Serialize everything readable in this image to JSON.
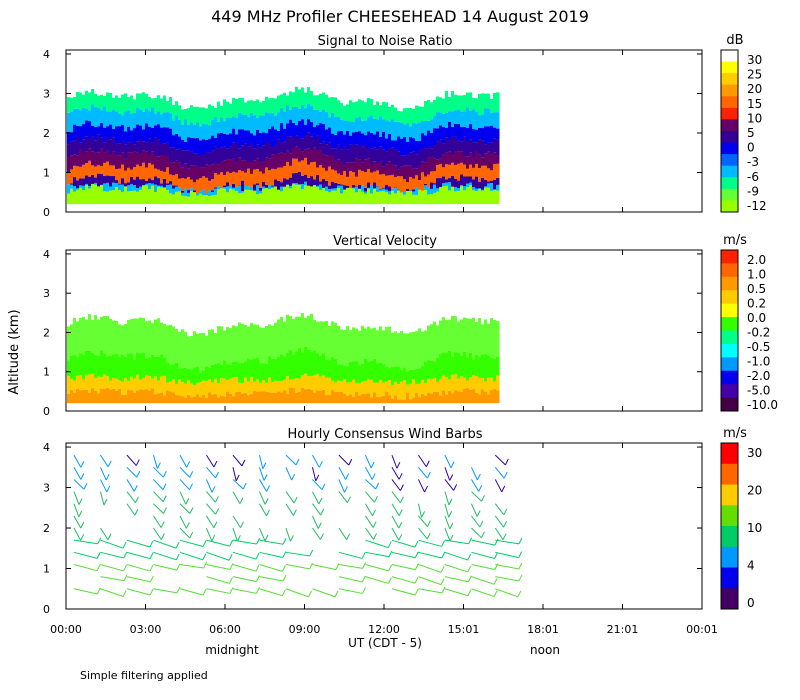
{
  "title": "449 MHz Profiler CHEESEHEAD 14 August 2019",
  "ylabel": "Altitude (km)",
  "xlabel": "UT  (CDT - 5)",
  "footnote": "Simple filtering applied",
  "time_marks": [
    {
      "label": "midnight",
      "at_hour": 5
    },
    {
      "label": "noon",
      "at_hour": 17
    }
  ],
  "chart_data": [
    {
      "type": "heatmap",
      "title": "Signal to Noise Ratio",
      "units": "dB",
      "xlim": [
        0,
        24
      ],
      "ylim": [
        0,
        4.1
      ],
      "x_ticks": [
        "00:00",
        "03:00",
        "06:00",
        "09:00",
        "12:00",
        "15:01",
        "18:01",
        "21:01",
        "00:01"
      ],
      "y_ticks": [
        "0",
        "1",
        "2",
        "3",
        "4"
      ],
      "data_end_hour": 16.3,
      "colorbar": {
        "labels": [
          "30",
          "25",
          "20",
          "15",
          "10",
          "5",
          "0",
          "-3",
          "-6",
          "-9",
          "-12"
        ],
        "colors": [
          "#ffffff",
          "#ffff00",
          "#ffcc00",
          "#ff9900",
          "#ff6600",
          "#ff2200",
          "#660066",
          "#330099",
          "#0000ee",
          "#0066ff",
          "#00bbff",
          "#00ff88",
          "#66ff33",
          "#99ff00"
        ]
      },
      "layers": [
        {
          "top": 0.55,
          "color": "#99ff00"
        },
        {
          "top": 0.62,
          "color": "#00bbff"
        },
        {
          "top": 0.72,
          "color": "#330099"
        },
        {
          "top": 1.05,
          "color": "#ff6600"
        },
        {
          "top": 1.35,
          "color": "#660066"
        },
        {
          "top": 1.7,
          "color": "#330099"
        },
        {
          "top": 2.05,
          "color": "#0000ee"
        },
        {
          "top": 2.45,
          "color": "#00bbff"
        },
        {
          "top": 2.85,
          "color": "#00ff88"
        },
        {
          "top": 4.0,
          "color": "#ffffff"
        }
      ]
    },
    {
      "type": "heatmap",
      "title": "Vertical Velocity",
      "units": "m/s",
      "xlim": [
        0,
        24
      ],
      "ylim": [
        0,
        4.1
      ],
      "x_ticks": [
        "00:00",
        "03:00",
        "06:00",
        "09:00",
        "12:00",
        "15:01",
        "18:01",
        "21:01",
        "00:01"
      ],
      "y_ticks": [
        "0",
        "1",
        "2",
        "3",
        "4"
      ],
      "data_end_hour": 16.3,
      "colorbar": {
        "labels": [
          "2.0",
          "1.0",
          "0.5",
          "0.2",
          "0.0",
          "-0.2",
          "-0.5",
          "-1.0",
          "-2.0",
          "-5.0",
          "-10.0"
        ],
        "colors": [
          "#ff2200",
          "#ff6600",
          "#ff9900",
          "#ffcc00",
          "#ffff00",
          "#33ff00",
          "#00ff88",
          "#00ffff",
          "#0099ff",
          "#0000ee",
          "#4400aa",
          "#440044"
        ]
      },
      "layers": [
        {
          "top": 0.45,
          "color": "#ff9900"
        },
        {
          "top": 0.8,
          "color": "#ffcc00"
        },
        {
          "top": 1.3,
          "color": "#33ff00"
        },
        {
          "top": 2.2,
          "color": "#66ff33"
        },
        {
          "top": 3.0,
          "color": "#ffffff"
        }
      ]
    },
    {
      "type": "wind_barbs",
      "title": "Hourly Consensus Wind Barbs",
      "units": "m/s",
      "xlim": [
        0,
        24
      ],
      "ylim": [
        0,
        4.1
      ],
      "x_ticks": [
        "00:00",
        "03:00",
        "06:00",
        "09:00",
        "12:00",
        "15:01",
        "18:01",
        "21:01",
        "00:01"
      ],
      "y_ticks": [
        "0",
        "1",
        "2",
        "3",
        "4"
      ],
      "data_end_hour": 16.5,
      "colorbar": {
        "labels": [
          "30",
          "20",
          "10",
          "4",
          "0"
        ],
        "colors": [
          "#ff0000",
          "#ff6600",
          "#ffcc00",
          "#66dd00",
          "#00cc66",
          "#0099ff",
          "#0000ee",
          "#440066"
        ]
      },
      "barb_hours": [
        0.3,
        1.3,
        2.3,
        3.3,
        4.3,
        5.3,
        6.3,
        7.3,
        8.3,
        9.3,
        10.3,
        11.3,
        12.3,
        13.3,
        14.3,
        15.3,
        16.2
      ],
      "barb_heights": [
        0.5,
        0.8,
        1.1,
        1.4,
        1.7,
        2.0,
        2.3,
        2.6,
        2.9,
        3.2,
        3.5,
        3.8
      ]
    }
  ]
}
